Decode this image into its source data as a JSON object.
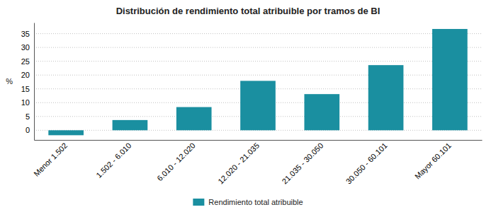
{
  "chart_data": {
    "type": "bar",
    "title": "Distribución de rendimiento total atribuible por tramos de BI",
    "categories": [
      "Menor 1.502",
      "1.502 - 6.010",
      "6.010 - 12.020",
      "12.020 - 21.035",
      "21.035 - 30.050",
      "30.050 - 60.101",
      "Mayor 60.101"
    ],
    "series": [
      {
        "name": "Rendimiento total atribuible",
        "color": "#1a8fa0",
        "values": [
          -1.8,
          3.7,
          8.4,
          17.9,
          13.1,
          23.6,
          36.7
        ]
      }
    ],
    "ylabel": "%",
    "ylim": [
      -3.5,
      39
    ],
    "yticks": [
      0,
      5,
      10,
      15,
      20,
      25,
      30,
      35
    ],
    "grid": true,
    "legend": "bottom"
  }
}
